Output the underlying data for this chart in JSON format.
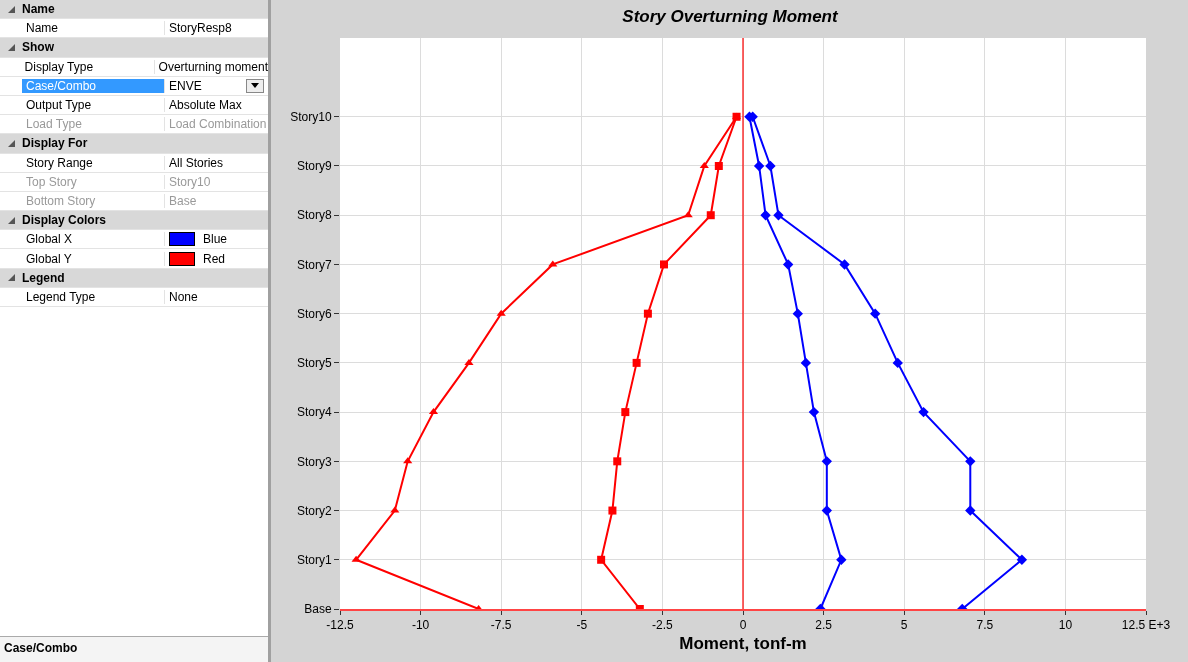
{
  "chart_data": [
    {
      "type": "other",
      "annotations": [
        "Name",
        "Name",
        "StoryResp8",
        "Show",
        "Display Type",
        "Overturning moment",
        "Case/Combo",
        "ENVE",
        "Output Type",
        "Absolute Max",
        "Load Type",
        "Load Combination",
        "Display For",
        "Story Range",
        "All Stories",
        "Top Story",
        "Story10",
        "Bottom Story",
        "Base",
        "Display Colors",
        "Global X",
        "Blue",
        "Global Y",
        "Red",
        "Legend",
        "Legend Type",
        "None",
        "Case/Combo"
      ]
    },
    {
      "type": "line",
      "title": "Story Overturning Moment",
      "xlabel": "Moment, tonf-m",
      "orientation": "horizontal",
      "categories": [
        "Story10",
        "Story9",
        "Story8",
        "Story7",
        "Story6",
        "Story5",
        "Story4",
        "Story3",
        "Story2",
        "Story1",
        "Base"
      ],
      "series": [
        {
          "color": "#ff0000",
          "marker": "triangle",
          "values": [
            -0.2,
            -1.2,
            -1.7,
            -5.9,
            -7.5,
            -8.5,
            -9.6,
            -10.4,
            -10.8,
            -12.0,
            -8.2
          ]
        },
        {
          "color": "#ff0000",
          "marker": "square",
          "values": [
            -0.2,
            -0.75,
            -1.0,
            -2.45,
            -2.95,
            -3.3,
            -3.65,
            -3.9,
            -4.05,
            -4.4,
            -3.2
          ]
        },
        {
          "color": "#0000ff",
          "marker": "diamond",
          "values": [
            0.2,
            0.5,
            0.7,
            1.4,
            1.7,
            1.95,
            2.2,
            2.6,
            2.6,
            3.05,
            2.4
          ]
        },
        {
          "color": "#0000ff",
          "marker": "diamond",
          "values": [
            0.3,
            0.85,
            1.1,
            3.15,
            4.1,
            4.8,
            5.6,
            7.05,
            7.05,
            8.65,
            6.8
          ]
        }
      ],
      "xlim": [
        -12.5,
        12.5
      ],
      "xticks": [
        -12.5,
        -10.0,
        -7.5,
        -5.0,
        -2.5,
        0.0,
        2.5,
        5.0,
        7.5,
        10.0,
        {
          "value": 12.5,
          "label": "12.5 E+3"
        }
      ],
      "grid": true,
      "line_style": "solid",
      "ref_lines": [
        {
          "axis": "x",
          "value": 0,
          "color": "#ff0000"
        }
      ]
    }
  ]
}
